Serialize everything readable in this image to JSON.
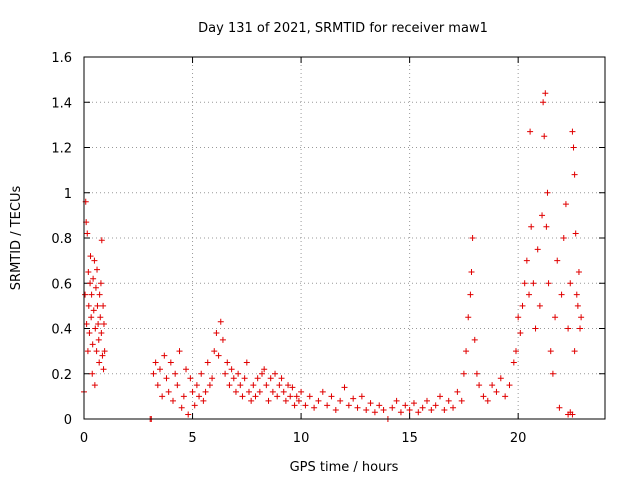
{
  "chart_data": {
    "type": "scatter",
    "title": "Day 131 of 2021, SRMTID for receiver maw1",
    "xlabel": "GPS time / hours",
    "ylabel": "SRMTID / TECUs",
    "xlim": [
      0,
      24
    ],
    "ylim": [
      0,
      1.6
    ],
    "grid": true,
    "marker": "+",
    "color": "#e00000",
    "xticks": [
      0,
      5,
      10,
      15,
      20
    ],
    "yticks": [
      0,
      0.2,
      0.4,
      0.6,
      0.8,
      1,
      1.2,
      1.4,
      1.6
    ],
    "xtick_labels": [
      "0",
      "5",
      "10",
      "15",
      "20"
    ],
    "ytick_labels": [
      "0",
      "0.2",
      "0.4",
      "0.6",
      "0.8",
      "1",
      "1.2",
      "1.4",
      "1.6"
    ],
    "series": [
      {
        "name": "SRMTID",
        "points": [
          [
            0.0,
            0.12
          ],
          [
            0.05,
            0.55
          ],
          [
            0.08,
            0.96
          ],
          [
            0.1,
            0.87
          ],
          [
            0.12,
            0.42
          ],
          [
            0.15,
            0.82
          ],
          [
            0.18,
            0.3
          ],
          [
            0.2,
            0.65
          ],
          [
            0.22,
            0.5
          ],
          [
            0.25,
            0.38
          ],
          [
            0.28,
            0.6
          ],
          [
            0.3,
            0.72
          ],
          [
            0.33,
            0.45
          ],
          [
            0.35,
            0.55
          ],
          [
            0.38,
            0.2
          ],
          [
            0.4,
            0.33
          ],
          [
            0.42,
            0.62
          ],
          [
            0.45,
            0.48
          ],
          [
            0.48,
            0.7
          ],
          [
            0.5,
            0.15
          ],
          [
            0.52,
            0.4
          ],
          [
            0.55,
            0.58
          ],
          [
            0.58,
            0.3
          ],
          [
            0.6,
            0.66
          ],
          [
            0.62,
            0.5
          ],
          [
            0.65,
            0.42
          ],
          [
            0.68,
            0.35
          ],
          [
            0.7,
            0.25
          ],
          [
            0.72,
            0.55
          ],
          [
            0.75,
            0.45
          ],
          [
            0.78,
            0.6
          ],
          [
            0.8,
            0.38
          ],
          [
            0.82,
            0.79
          ],
          [
            0.85,
            0.28
          ],
          [
            0.88,
            0.5
          ],
          [
            0.9,
            0.22
          ],
          [
            0.92,
            0.42
          ],
          [
            0.95,
            0.3
          ],
          [
            3.05,
            0.0
          ],
          [
            3.1,
            0.0
          ],
          [
            3.2,
            0.2
          ],
          [
            3.3,
            0.25
          ],
          [
            3.4,
            0.15
          ],
          [
            3.5,
            0.22
          ],
          [
            3.6,
            0.1
          ],
          [
            3.7,
            0.28
          ],
          [
            3.8,
            0.18
          ],
          [
            3.9,
            0.12
          ],
          [
            4.0,
            0.25
          ],
          [
            4.1,
            0.08
          ],
          [
            4.2,
            0.2
          ],
          [
            4.3,
            0.15
          ],
          [
            4.4,
            0.3
          ],
          [
            4.5,
            0.05
          ],
          [
            4.6,
            0.1
          ],
          [
            4.7,
            0.22
          ],
          [
            4.8,
            0.02
          ],
          [
            4.9,
            0.18
          ],
          [
            5.0,
            0.12
          ],
          [
            5.1,
            0.06
          ],
          [
            5.2,
            0.15
          ],
          [
            5.3,
            0.1
          ],
          [
            5.4,
            0.2
          ],
          [
            5.5,
            0.08
          ],
          [
            5.6,
            0.12
          ],
          [
            5.7,
            0.25
          ],
          [
            5.8,
            0.15
          ],
          [
            5.9,
            0.18
          ],
          [
            6.0,
            0.3
          ],
          [
            6.1,
            0.38
          ],
          [
            6.2,
            0.28
          ],
          [
            6.3,
            0.43
          ],
          [
            6.4,
            0.35
          ],
          [
            6.5,
            0.2
          ],
          [
            6.6,
            0.25
          ],
          [
            6.7,
            0.15
          ],
          [
            6.8,
            0.22
          ],
          [
            6.9,
            0.18
          ],
          [
            7.0,
            0.12
          ],
          [
            7.1,
            0.2
          ],
          [
            7.2,
            0.15
          ],
          [
            7.3,
            0.1
          ],
          [
            7.4,
            0.18
          ],
          [
            7.5,
            0.25
          ],
          [
            7.6,
            0.12
          ],
          [
            7.7,
            0.08
          ],
          [
            7.8,
            0.15
          ],
          [
            7.9,
            0.1
          ],
          [
            8.0,
            0.18
          ],
          [
            8.1,
            0.12
          ],
          [
            8.2,
            0.2
          ],
          [
            8.3,
            0.22
          ],
          [
            8.4,
            0.15
          ],
          [
            8.5,
            0.08
          ],
          [
            8.6,
            0.18
          ],
          [
            8.7,
            0.12
          ],
          [
            8.8,
            0.2
          ],
          [
            8.9,
            0.1
          ],
          [
            9.0,
            0.15
          ],
          [
            9.1,
            0.18
          ],
          [
            9.2,
            0.12
          ],
          [
            9.3,
            0.08
          ],
          [
            9.4,
            0.15
          ],
          [
            9.5,
            0.1
          ],
          [
            9.6,
            0.14
          ],
          [
            9.7,
            0.06
          ],
          [
            9.8,
            0.1
          ],
          [
            9.9,
            0.08
          ],
          [
            10.0,
            0.12
          ],
          [
            10.2,
            0.06
          ],
          [
            10.4,
            0.1
          ],
          [
            10.6,
            0.05
          ],
          [
            10.8,
            0.08
          ],
          [
            11.0,
            0.12
          ],
          [
            11.2,
            0.06
          ],
          [
            11.4,
            0.1
          ],
          [
            11.6,
            0.04
          ],
          [
            11.8,
            0.08
          ],
          [
            12.0,
            0.14
          ],
          [
            12.2,
            0.06
          ],
          [
            12.4,
            0.09
          ],
          [
            12.6,
            0.05
          ],
          [
            12.8,
            0.1
          ],
          [
            13.0,
            0.04
          ],
          [
            13.2,
            0.07
          ],
          [
            13.4,
            0.03
          ],
          [
            13.6,
            0.06
          ],
          [
            13.8,
            0.04
          ],
          [
            14.0,
            0.0
          ],
          [
            14.2,
            0.05
          ],
          [
            14.4,
            0.08
          ],
          [
            14.6,
            0.03
          ],
          [
            14.8,
            0.06
          ],
          [
            15.0,
            0.04
          ],
          [
            15.2,
            0.07
          ],
          [
            15.4,
            0.03
          ],
          [
            15.6,
            0.05
          ],
          [
            15.8,
            0.08
          ],
          [
            16.0,
            0.04
          ],
          [
            16.2,
            0.06
          ],
          [
            16.4,
            0.1
          ],
          [
            16.6,
            0.04
          ],
          [
            16.8,
            0.08
          ],
          [
            17.0,
            0.05
          ],
          [
            17.2,
            0.12
          ],
          [
            17.4,
            0.08
          ],
          [
            17.5,
            0.2
          ],
          [
            17.6,
            0.3
          ],
          [
            17.7,
            0.45
          ],
          [
            17.8,
            0.55
          ],
          [
            17.85,
            0.65
          ],
          [
            17.9,
            0.8
          ],
          [
            18.0,
            0.35
          ],
          [
            18.1,
            0.2
          ],
          [
            18.2,
            0.15
          ],
          [
            18.4,
            0.1
          ],
          [
            18.6,
            0.08
          ],
          [
            18.8,
            0.15
          ],
          [
            19.0,
            0.12
          ],
          [
            19.2,
            0.18
          ],
          [
            19.4,
            0.1
          ],
          [
            19.6,
            0.15
          ],
          [
            19.8,
            0.25
          ],
          [
            19.9,
            0.3
          ],
          [
            20.0,
            0.45
          ],
          [
            20.1,
            0.38
          ],
          [
            20.2,
            0.5
          ],
          [
            20.3,
            0.6
          ],
          [
            20.4,
            0.7
          ],
          [
            20.5,
            0.55
          ],
          [
            20.55,
            1.27
          ],
          [
            20.6,
            0.85
          ],
          [
            20.7,
            0.6
          ],
          [
            20.8,
            0.4
          ],
          [
            20.9,
            0.75
          ],
          [
            21.0,
            0.5
          ],
          [
            21.1,
            0.9
          ],
          [
            21.15,
            1.4
          ],
          [
            21.2,
            1.25
          ],
          [
            21.25,
            1.44
          ],
          [
            21.3,
            0.85
          ],
          [
            21.35,
            1.0
          ],
          [
            21.4,
            0.6
          ],
          [
            21.5,
            0.3
          ],
          [
            21.6,
            0.2
          ],
          [
            21.7,
            0.45
          ],
          [
            21.8,
            0.7
          ],
          [
            21.9,
            0.05
          ],
          [
            22.0,
            0.55
          ],
          [
            22.1,
            0.8
          ],
          [
            22.2,
            0.95
          ],
          [
            22.3,
            0.4
          ],
          [
            22.4,
            0.6
          ],
          [
            22.5,
            1.27
          ],
          [
            22.55,
            1.2
          ],
          [
            22.6,
            1.08
          ],
          [
            22.65,
            0.82
          ],
          [
            22.7,
            0.55
          ],
          [
            22.8,
            0.65
          ],
          [
            22.85,
            0.4
          ],
          [
            22.3,
            0.02
          ],
          [
            22.4,
            0.03
          ],
          [
            22.5,
            0.02
          ],
          [
            22.6,
            0.3
          ],
          [
            22.75,
            0.5
          ],
          [
            22.9,
            0.45
          ]
        ]
      }
    ]
  }
}
